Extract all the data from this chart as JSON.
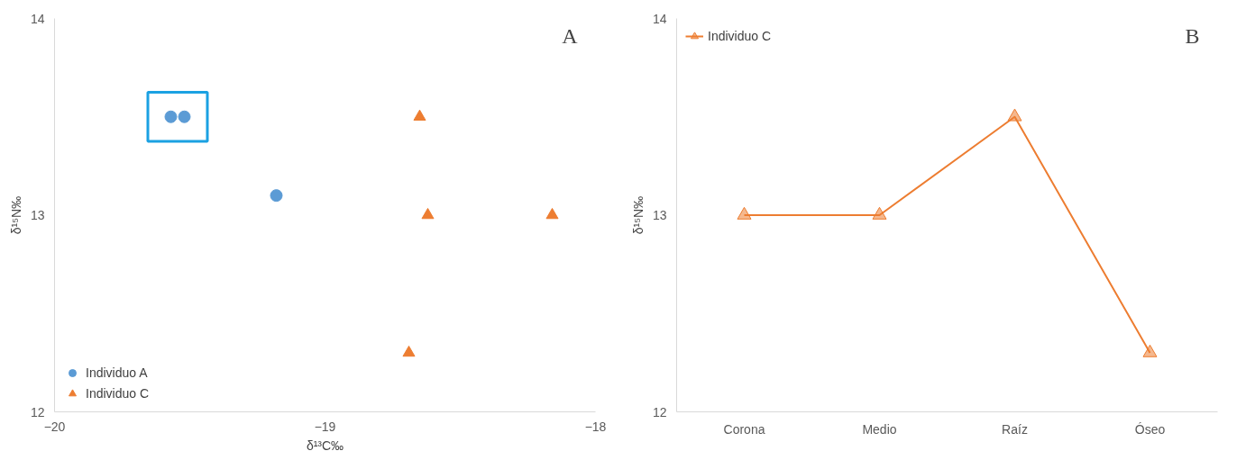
{
  "chart_data": [
    {
      "type": "scatter",
      "xlabel": "δ¹³C‰",
      "ylabel": "δ¹⁵N‰",
      "xlim": [
        -20,
        -18
      ],
      "ylim": [
        12,
        14
      ],
      "xticks": [
        -20,
        -19,
        -18
      ],
      "yticks": [
        12,
        13,
        14
      ],
      "grid": false,
      "legend": "bottom left",
      "annotations": [
        "A"
      ],
      "series": [
        {
          "name": "Individuo A",
          "color": "#5b9bd5",
          "marker": "circle",
          "x": [
            -19.57,
            -19.52,
            -19.18
          ],
          "values": [
            13.5,
            13.5,
            13.1
          ]
        },
        {
          "name": "Individuo C",
          "color": "#ed7d31",
          "marker": "triangle",
          "x": [
            -18.65,
            -18.62,
            -18.16,
            -18.69
          ],
          "values": [
            13.5,
            13.0,
            13.0,
            12.3
          ]
        }
      ]
    },
    {
      "type": "line",
      "ylabel": "δ¹⁵N‰",
      "categories": [
        "Corona",
        "Medio",
        "Raíz",
        "Óseo"
      ],
      "ylim": [
        12,
        14
      ],
      "yticks": [
        12,
        13,
        14
      ],
      "grid": false,
      "legend": "top left",
      "marker": "triangle",
      "line_style": "solid",
      "annotations": [
        "B"
      ],
      "series": [
        {
          "name": "Individuo C",
          "color": "#ed7d31",
          "values": [
            13,
            13,
            13.5,
            12.3
          ]
        }
      ]
    }
  ]
}
